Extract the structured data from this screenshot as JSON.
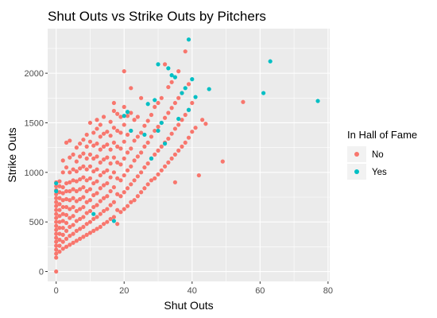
{
  "chart_data": {
    "type": "scatter",
    "title": "Shut Outs vs Strike Outs by Pitchers",
    "xlabel": "Shut Outs",
    "ylabel": "Strike Outs",
    "xlim": [
      -2.5,
      80.5
    ],
    "ylim": [
      -100,
      2450
    ],
    "xticks": [
      0,
      20,
      40,
      60,
      80
    ],
    "yticks": [
      0,
      500,
      1000,
      1500,
      2000
    ],
    "grid": true,
    "panel_background": "#ebebeb",
    "legend": {
      "title": "In Hall of Fame",
      "placement": "right",
      "entries": [
        {
          "label": "No",
          "color": "#f8766d"
        },
        {
          "label": "Yes",
          "color": "#00bfc4"
        }
      ]
    },
    "series": [
      {
        "name": "No",
        "color": "#f8766d",
        "points": [
          [
            0,
            0
          ],
          [
            0,
            140
          ],
          [
            0,
            180
          ],
          [
            0,
            220
          ],
          [
            0,
            260
          ],
          [
            0,
            300
          ],
          [
            0,
            340
          ],
          [
            0,
            380
          ],
          [
            0,
            420
          ],
          [
            0,
            460
          ],
          [
            0,
            500
          ],
          [
            0,
            540
          ],
          [
            0,
            580
          ],
          [
            0,
            620
          ],
          [
            0,
            660
          ],
          [
            0,
            700
          ],
          [
            0,
            740
          ],
          [
            0,
            780
          ],
          [
            0,
            820
          ],
          [
            0,
            860
          ],
          [
            0,
            900
          ],
          [
            1,
            200
          ],
          [
            1,
            260
          ],
          [
            1,
            320
          ],
          [
            1,
            380
          ],
          [
            1,
            440
          ],
          [
            1,
            500
          ],
          [
            1,
            560
          ],
          [
            1,
            620
          ],
          [
            1,
            680
          ],
          [
            1,
            740
          ],
          [
            1,
            800
          ],
          [
            1,
            860
          ],
          [
            1,
            910
          ],
          [
            2,
            230
          ],
          [
            2,
            300
          ],
          [
            2,
            370
          ],
          [
            2,
            440
          ],
          [
            2,
            510
          ],
          [
            2,
            580
          ],
          [
            2,
            650
          ],
          [
            2,
            720
          ],
          [
            2,
            790
          ],
          [
            2,
            850
          ],
          [
            2,
            1000
          ],
          [
            2,
            1120
          ],
          [
            3,
            250
          ],
          [
            3,
            330
          ],
          [
            3,
            410
          ],
          [
            3,
            490
          ],
          [
            3,
            570
          ],
          [
            3,
            650
          ],
          [
            3,
            730
          ],
          [
            3,
            810
          ],
          [
            3,
            890
          ],
          [
            3,
            1050
          ],
          [
            3,
            1300
          ],
          [
            4,
            270
          ],
          [
            4,
            360
          ],
          [
            4,
            450
          ],
          [
            4,
            540
          ],
          [
            4,
            630
          ],
          [
            4,
            720
          ],
          [
            4,
            810
          ],
          [
            4,
            900
          ],
          [
            4,
            1000
          ],
          [
            4,
            1150
          ],
          [
            4,
            1320
          ],
          [
            5,
            290
          ],
          [
            5,
            380
          ],
          [
            5,
            470
          ],
          [
            5,
            560
          ],
          [
            5,
            650
          ],
          [
            5,
            740
          ],
          [
            5,
            830
          ],
          [
            5,
            920
          ],
          [
            5,
            1030
          ],
          [
            5,
            1180
          ],
          [
            6,
            310
          ],
          [
            6,
            410
          ],
          [
            6,
            510
          ],
          [
            6,
            610
          ],
          [
            6,
            710
          ],
          [
            6,
            810
          ],
          [
            6,
            910
          ],
          [
            6,
            1010
          ],
          [
            6,
            1110
          ],
          [
            6,
            1250
          ],
          [
            7,
            330
          ],
          [
            7,
            430
          ],
          [
            7,
            530
          ],
          [
            7,
            630
          ],
          [
            7,
            730
          ],
          [
            7,
            830
          ],
          [
            7,
            930
          ],
          [
            7,
            1040
          ],
          [
            7,
            1160
          ],
          [
            7,
            1290
          ],
          [
            8,
            350
          ],
          [
            8,
            450
          ],
          [
            8,
            550
          ],
          [
            8,
            650
          ],
          [
            8,
            750
          ],
          [
            8,
            850
          ],
          [
            8,
            950
          ],
          [
            8,
            1060
          ],
          [
            8,
            1190
          ],
          [
            8,
            1330
          ],
          [
            9,
            370
          ],
          [
            9,
            480
          ],
          [
            9,
            590
          ],
          [
            9,
            700
          ],
          [
            9,
            810
          ],
          [
            9,
            920
          ],
          [
            9,
            1030
          ],
          [
            9,
            1140
          ],
          [
            9,
            1260
          ],
          [
            9,
            1380
          ],
          [
            10,
            390
          ],
          [
            10,
            500
          ],
          [
            10,
            610
          ],
          [
            10,
            720
          ],
          [
            10,
            830
          ],
          [
            10,
            940
          ],
          [
            10,
            1060
          ],
          [
            10,
            1180
          ],
          [
            10,
            1310
          ],
          [
            10,
            1500
          ],
          [
            11,
            410
          ],
          [
            11,
            530
          ],
          [
            11,
            650
          ],
          [
            11,
            770
          ],
          [
            11,
            890
          ],
          [
            11,
            1010
          ],
          [
            11,
            1140
          ],
          [
            11,
            1270
          ],
          [
            11,
            1400
          ],
          [
            12,
            430
          ],
          [
            12,
            550
          ],
          [
            12,
            670
          ],
          [
            12,
            790
          ],
          [
            12,
            910
          ],
          [
            12,
            1030
          ],
          [
            12,
            1160
          ],
          [
            12,
            1290
          ],
          [
            12,
            1440
          ],
          [
            12,
            1530
          ],
          [
            13,
            450
          ],
          [
            13,
            580
          ],
          [
            13,
            710
          ],
          [
            13,
            840
          ],
          [
            13,
            970
          ],
          [
            13,
            1100
          ],
          [
            13,
            1230
          ],
          [
            13,
            1360
          ],
          [
            13,
            1480
          ],
          [
            14,
            480
          ],
          [
            14,
            610
          ],
          [
            14,
            740
          ],
          [
            14,
            870
          ],
          [
            14,
            1000
          ],
          [
            14,
            1130
          ],
          [
            14,
            1260
          ],
          [
            14,
            1390
          ],
          [
            14,
            1560
          ],
          [
            15,
            500
          ],
          [
            15,
            630
          ],
          [
            15,
            760
          ],
          [
            15,
            890
          ],
          [
            15,
            1020
          ],
          [
            15,
            1150
          ],
          [
            15,
            1280
          ],
          [
            15,
            1410
          ],
          [
            16,
            530
          ],
          [
            16,
            670
          ],
          [
            16,
            810
          ],
          [
            16,
            950
          ],
          [
            16,
            1090
          ],
          [
            16,
            1230
          ],
          [
            16,
            1370
          ],
          [
            16,
            1510
          ],
          [
            17,
            550
          ],
          [
            17,
            700
          ],
          [
            17,
            850
          ],
          [
            17,
            1000
          ],
          [
            17,
            1150
          ],
          [
            17,
            1300
          ],
          [
            17,
            1450
          ],
          [
            17,
            1620
          ],
          [
            17,
            1700
          ],
          [
            18,
            480
          ],
          [
            18,
            620
          ],
          [
            18,
            780
          ],
          [
            18,
            940
          ],
          [
            18,
            1100
          ],
          [
            18,
            1260
          ],
          [
            18,
            1420
          ],
          [
            18,
            1590
          ],
          [
            19,
            600
          ],
          [
            19,
            760
          ],
          [
            19,
            920
          ],
          [
            19,
            1080
          ],
          [
            19,
            1240
          ],
          [
            19,
            1400
          ],
          [
            19,
            1560
          ],
          [
            20,
            630
          ],
          [
            20,
            800
          ],
          [
            20,
            970
          ],
          [
            20,
            1140
          ],
          [
            20,
            1310
          ],
          [
            20,
            1480
          ],
          [
            20,
            1660
          ],
          [
            20,
            2020
          ],
          [
            21,
            660
          ],
          [
            21,
            840
          ],
          [
            21,
            1020
          ],
          [
            21,
            1200
          ],
          [
            21,
            1380
          ],
          [
            21,
            1570
          ],
          [
            22,
            700
          ],
          [
            22,
            880
          ],
          [
            22,
            1060
          ],
          [
            22,
            1240
          ],
          [
            22,
            1420
          ],
          [
            22,
            1600
          ],
          [
            22,
            1850
          ],
          [
            23,
            720
          ],
          [
            23,
            920
          ],
          [
            23,
            1120
          ],
          [
            23,
            1320
          ],
          [
            23,
            1530
          ],
          [
            24,
            760
          ],
          [
            24,
            960
          ],
          [
            24,
            1160
          ],
          [
            24,
            1360
          ],
          [
            24,
            1560
          ],
          [
            25,
            800
          ],
          [
            25,
            1000
          ],
          [
            25,
            1200
          ],
          [
            25,
            1400
          ],
          [
            25,
            1750
          ],
          [
            26,
            840
          ],
          [
            26,
            1050
          ],
          [
            26,
            1260
          ],
          [
            26,
            1470
          ],
          [
            27,
            880
          ],
          [
            27,
            1090
          ],
          [
            27,
            1300
          ],
          [
            27,
            1520
          ],
          [
            28,
            920
          ],
          [
            28,
            1140
          ],
          [
            28,
            1360
          ],
          [
            28,
            1580
          ],
          [
            29,
            940
          ],
          [
            29,
            1180
          ],
          [
            29,
            1420
          ],
          [
            29,
            1660
          ],
          [
            30,
            980
          ],
          [
            30,
            1220
          ],
          [
            30,
            1460
          ],
          [
            30,
            1700
          ],
          [
            31,
            1020
          ],
          [
            31,
            1260
          ],
          [
            31,
            1500
          ],
          [
            31,
            1750
          ],
          [
            32,
            1060
          ],
          [
            32,
            1300
          ],
          [
            32,
            1550
          ],
          [
            32,
            2090
          ],
          [
            33,
            1100
          ],
          [
            33,
            1340
          ],
          [
            33,
            1600
          ],
          [
            33,
            1860
          ],
          [
            34,
            1140
          ],
          [
            34,
            1390
          ],
          [
            34,
            1650
          ],
          [
            34,
            1910
          ],
          [
            35,
            900
          ],
          [
            35,
            1180
          ],
          [
            35,
            1440
          ],
          [
            35,
            1700
          ],
          [
            36,
            1220
          ],
          [
            36,
            1480
          ],
          [
            36,
            1750
          ],
          [
            36,
            2020
          ],
          [
            37,
            1260
          ],
          [
            37,
            1530
          ],
          [
            37,
            1800
          ],
          [
            38,
            1300
          ],
          [
            38,
            1580
          ],
          [
            38,
            2220
          ],
          [
            39,
            1350
          ],
          [
            39,
            1630
          ],
          [
            39,
            1890
          ],
          [
            40,
            1410
          ],
          [
            40,
            1700
          ],
          [
            41,
            1450
          ],
          [
            42,
            970
          ],
          [
            43,
            1530
          ],
          [
            44,
            1490
          ],
          [
            49,
            1110
          ],
          [
            55,
            1710
          ]
        ]
      },
      {
        "name": "Yes",
        "color": "#00bfc4",
        "points": [
          [
            0,
            810
          ],
          [
            0,
            890
          ],
          [
            11,
            580
          ],
          [
            17,
            510
          ],
          [
            20,
            1570
          ],
          [
            21,
            1610
          ],
          [
            22,
            1420
          ],
          [
            26,
            1380
          ],
          [
            27,
            1690
          ],
          [
            28,
            1140
          ],
          [
            29,
            1730
          ],
          [
            30,
            2090
          ],
          [
            30,
            1420
          ],
          [
            31,
            1500
          ],
          [
            32,
            1290
          ],
          [
            33,
            2050
          ],
          [
            34,
            1980
          ],
          [
            35,
            1960
          ],
          [
            36,
            1540
          ],
          [
            37,
            1800
          ],
          [
            38,
            1850
          ],
          [
            39,
            2340
          ],
          [
            39,
            1630
          ],
          [
            40,
            1940
          ],
          [
            41,
            1760
          ],
          [
            45,
            1840
          ],
          [
            61,
            1800
          ],
          [
            63,
            2120
          ],
          [
            77,
            1720
          ]
        ]
      }
    ]
  }
}
